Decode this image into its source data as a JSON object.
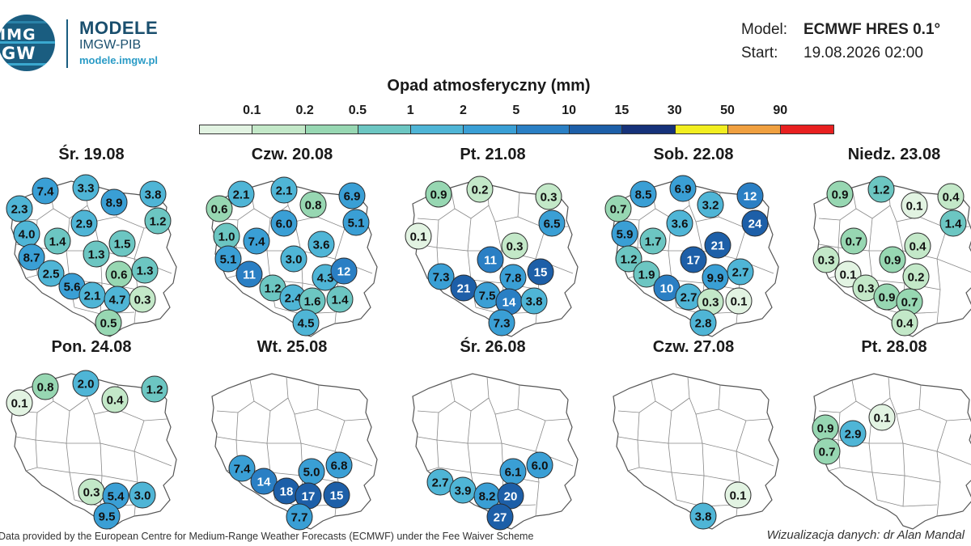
{
  "header": {
    "logo_text_top": "IMG",
    "logo_text_bottom": "GW",
    "brand_title": "MODELE",
    "brand_subtitle": "IMGW-PIB",
    "brand_url": "modele.imgw.pl"
  },
  "meta": {
    "model_label": "Model:",
    "model_value": "ECMWF HRES 0.1°",
    "start_label": "Start:",
    "start_value": "19.08.2026 02:00"
  },
  "legend": {
    "title": "Opad atmosferyczny (mm)",
    "ticks": [
      "0.1",
      "0.2",
      "0.5",
      "1",
      "2",
      "5",
      "10",
      "15",
      "30",
      "50",
      "90"
    ],
    "colors": [
      "#e2f3e2",
      "#c3e8c8",
      "#97d7b2",
      "#6cc6c2",
      "#4fb5d6",
      "#3a9fd5",
      "#2a7fc4",
      "#1d5fa8",
      "#16327a",
      "#f2ee20",
      "#f0a040",
      "#e82020"
    ]
  },
  "days": [
    {
      "title": "Śr. 19.08",
      "dots": [
        [
          "7.4",
          50,
          36
        ],
        [
          "3.3",
          100,
          32
        ],
        [
          "8.9",
          135,
          50
        ],
        [
          "3.8",
          183,
          40
        ],
        [
          "2.3",
          18,
          58
        ],
        [
          "1.2",
          189,
          73
        ],
        [
          "2.9",
          98,
          76
        ],
        [
          "4.0",
          27,
          89
        ],
        [
          "1.4",
          65,
          98
        ],
        [
          "1.5",
          145,
          101
        ],
        [
          "1.3",
          113,
          114
        ],
        [
          "8.7",
          33,
          118
        ],
        [
          "0.6",
          141,
          139
        ],
        [
          "1.3",
          173,
          134
        ],
        [
          "2.5",
          57,
          138
        ],
        [
          "5.6",
          83,
          154
        ],
        [
          "2.1",
          108,
          165
        ],
        [
          "4.7",
          139,
          170
        ],
        [
          "0.3",
          170,
          170
        ],
        [
          "0.5",
          128,
          199
        ]
      ]
    },
    {
      "title": "Czw. 20.08",
      "dots": [
        [
          "2.1",
          44,
          40
        ],
        [
          "2.1",
          97,
          35
        ],
        [
          "6.9",
          181,
          42
        ],
        [
          "0.8",
          133,
          53
        ],
        [
          "0.6",
          17,
          58
        ],
        [
          "5.1",
          186,
          75
        ],
        [
          "6.0",
          97,
          76
        ],
        [
          "1.0",
          26,
          92
        ],
        [
          "7.4",
          63,
          98
        ],
        [
          "3.6",
          143,
          102
        ],
        [
          "3.0",
          109,
          120
        ],
        [
          "5.1",
          28,
          120
        ],
        [
          "4.3",
          148,
          143
        ],
        [
          "12",
          171,
          135
        ],
        [
          "11",
          54,
          139
        ],
        [
          "1.2",
          83,
          156
        ],
        [
          "2.4",
          108,
          168
        ],
        [
          "1.6",
          132,
          172
        ],
        [
          "1.4",
          166,
          170
        ],
        [
          "4.5",
          124,
          199
        ]
      ]
    },
    {
      "title": "Pt. 21.08",
      "dots": [
        [
          "0.9",
          40,
          40
        ],
        [
          "0.2",
          91,
          34
        ],
        [
          "0.3",
          176,
          43
        ],
        [
          "6.5",
          180,
          76
        ],
        [
          "0.1",
          15,
          92
        ],
        [
          "0.3",
          134,
          104
        ],
        [
          "11",
          104,
          121
        ],
        [
          "7.3",
          43,
          142
        ],
        [
          "7.8",
          132,
          143
        ],
        [
          "15",
          166,
          136
        ],
        [
          "21",
          71,
          156
        ],
        [
          "7.5",
          100,
          165
        ],
        [
          "14",
          127,
          173
        ],
        [
          "3.8",
          158,
          172
        ],
        [
          "7.3",
          118,
          199
        ]
      ]
    },
    {
      "title": "Sob. 22.08",
      "dots": [
        [
          "8.5",
          45,
          40
        ],
        [
          "6.9",
          94,
          33
        ],
        [
          "12",
          177,
          42
        ],
        [
          "3.2",
          128,
          53
        ],
        [
          "0.7",
          14,
          58
        ],
        [
          "24",
          183,
          76
        ],
        [
          "3.6",
          90,
          76
        ],
        [
          "5.9",
          22,
          89
        ],
        [
          "1.7",
          57,
          98
        ],
        [
          "21",
          137,
          103
        ],
        [
          "17",
          107,
          121
        ],
        [
          "1.2",
          27,
          120
        ],
        [
          "9.9",
          134,
          143
        ],
        [
          "2.7",
          165,
          136
        ],
        [
          "1.9",
          49,
          139
        ],
        [
          "10",
          74,
          156
        ],
        [
          "2.7",
          101,
          167
        ],
        [
          "0.3",
          128,
          173
        ],
        [
          "0.1",
          163,
          172
        ],
        [
          "2.8",
          119,
          199
        ]
      ]
    },
    {
      "title": "Niedz. 23.08",
      "dots": [
        [
          "0.9",
          40,
          40
        ],
        [
          "1.2",
          91,
          34
        ],
        [
          "0.4",
          177,
          43
        ],
        [
          "0.1",
          132,
          54
        ],
        [
          "1.4",
          180,
          76
        ],
        [
          "0.7",
          57,
          98
        ],
        [
          "0.4",
          136,
          104
        ],
        [
          "0.3",
          23,
          121
        ],
        [
          "0.9",
          105,
          121
        ],
        [
          "0.1",
          50,
          139
        ],
        [
          "0.2",
          134,
          142
        ],
        [
          "0.3",
          72,
          156
        ],
        [
          "0.9",
          98,
          167
        ],
        [
          "0.7",
          126,
          173
        ],
        [
          "0.4",
          120,
          199
        ]
      ]
    },
    {
      "title": "Pon. 24.08",
      "dots": [
        [
          "0.8",
          50,
          40
        ],
        [
          "2.0",
          100,
          36
        ],
        [
          "1.2",
          185,
          43
        ],
        [
          "0.1",
          18,
          60
        ],
        [
          "0.4",
          136,
          56
        ],
        [
          "0.3",
          107,
          170
        ],
        [
          "5.4",
          137,
          175
        ],
        [
          "3.0",
          170,
          174
        ],
        [
          "9.5",
          126,
          200
        ]
      ]
    },
    {
      "title": "Wt. 25.08",
      "dots": [
        [
          "7.4",
          45,
          141
        ],
        [
          "14",
          72,
          157
        ],
        [
          "5.0",
          131,
          145
        ],
        [
          "6.8",
          165,
          137
        ],
        [
          "18",
          100,
          169
        ],
        [
          "17",
          127,
          175
        ],
        [
          "15",
          162,
          174
        ],
        [
          "7.7",
          116,
          201
        ]
      ]
    },
    {
      "title": "Śr. 26.08",
      "dots": [
        [
          "6.1",
          132,
          145
        ],
        [
          "6.0",
          165,
          137
        ],
        [
          "2.7",
          42,
          158
        ],
        [
          "3.9",
          70,
          168
        ],
        [
          "8.2",
          100,
          175
        ],
        [
          "20",
          129,
          175
        ],
        [
          "27",
          116,
          201
        ]
      ]
    },
    {
      "title": "Czw. 27.08",
      "dots": [
        [
          "0.1",
          162,
          174
        ],
        [
          "3.8",
          119,
          200
        ]
      ]
    },
    {
      "title": "Pt. 28.08",
      "dots": [
        [
          "0.1",
          92,
          78
        ],
        [
          "0.9",
          22,
          91
        ],
        [
          "2.9",
          56,
          98
        ],
        [
          "0.7",
          24,
          120
        ]
      ]
    }
  ],
  "footer": {
    "left": "Data provided by the European Centre for Medium-Range Weather Forecasts (ECMWF) under the Fee Waiver Scheme",
    "right": "Wizualizacja danych: dr Alan Mandal"
  }
}
